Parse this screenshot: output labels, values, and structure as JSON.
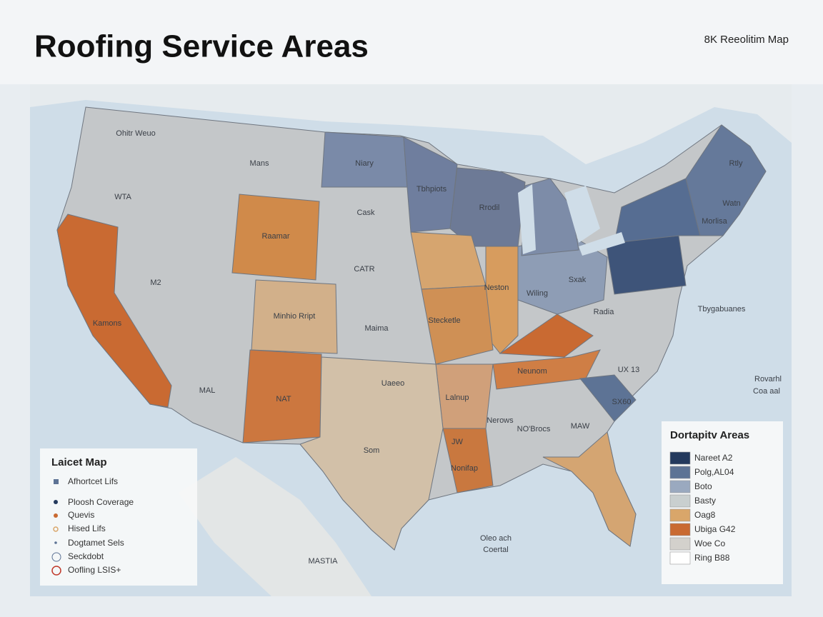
{
  "header": {
    "title": "Roofing Service Areas",
    "badge": "8K Reeolitim Map"
  },
  "map_labels": [
    "Ohitr Weuo",
    "Mans",
    "WTA",
    "Niary",
    "Tbhpiots",
    "Rrodil",
    "Cask",
    "Raamar",
    "M2",
    "CATR",
    "Neston",
    "Wiling",
    "Sxak",
    "Minhio Rript",
    "Maima",
    "Stecketle",
    "Radia",
    "Tbygabuanes",
    "Kamons",
    "MAL",
    "NAT",
    "Uaeeo",
    "Lalnup",
    "Neunom",
    "UX 13",
    "Rovarhl",
    "Coa aal",
    "Nerows",
    "NO'Brocs",
    "MAW",
    "SX60",
    "Som",
    "JW",
    "Nonifap",
    "Oleo ach",
    "Coertal",
    "MASTIA",
    "Rtly",
    "Watn",
    "Morlisa"
  ],
  "legend_left": {
    "title": "Laicet Map",
    "items": [
      "Afhortcet Lifs",
      "Ploosh Coverage",
      "Quevis",
      "Hised Lifs",
      "Dogtamet Sels",
      "Seckdobt",
      "Oofling LSIS+"
    ]
  },
  "legend_right": {
    "title": "Dortapitv Areas",
    "items": [
      {
        "label": "Nareet A2",
        "color": "#23395d"
      },
      {
        "label": "Polg,AL04",
        "color": "#5d7395"
      },
      {
        "label": "Boto",
        "color": "#9aa9bf"
      },
      {
        "label": "Basty",
        "color": "#c9cfcf"
      },
      {
        "label": "Oag8",
        "color": "#d9a66a"
      },
      {
        "label": "Ubiga G42",
        "color": "#c96a32"
      },
      {
        "label": "Woe Co",
        "color": "#d3d1cc"
      },
      {
        "label": "Ring B88",
        "color": "#ffffff"
      }
    ]
  }
}
